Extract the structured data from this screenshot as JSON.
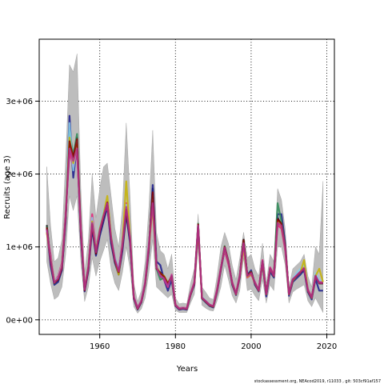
{
  "chart_data": {
    "type": "line",
    "title": "",
    "xlabel": "Years",
    "ylabel": "Recruits (age 3)",
    "xlim": [
      1944,
      2022
    ],
    "ylim": [
      -200000,
      3850000
    ],
    "x_ticks": [
      1960,
      1980,
      2000,
      2020
    ],
    "x_tick_labels": [
      "1960",
      "1980",
      "2000",
      "2020"
    ],
    "y_ticks": [
      0,
      1000000,
      2000000,
      3000000
    ],
    "y_tick_labels": [
      "0e+00",
      "1e+06",
      "2e+06",
      "3e+06"
    ],
    "grid": true,
    "confidence_band_color": "#bdbdbd",
    "series_colors": [
      "#000000",
      "#1a1a8c",
      "#e61e78",
      "#2e8b57",
      "#87ceeb",
      "#c8b400",
      "#8b0000",
      "#b03090"
    ],
    "x": [
      1946,
      1947,
      1948,
      1949,
      1950,
      1951,
      1952,
      1953,
      1954,
      1955,
      1956,
      1957,
      1958,
      1959,
      1960,
      1961,
      1962,
      1963,
      1964,
      1965,
      1966,
      1967,
      1968,
      1969,
      1970,
      1971,
      1972,
      1973,
      1974,
      1975,
      1976,
      1977,
      1978,
      1979,
      1980,
      1981,
      1982,
      1983,
      1984,
      1985,
      1986,
      1987,
      1988,
      1989,
      1990,
      1991,
      1992,
      1993,
      1994,
      1995,
      1996,
      1997,
      1998,
      1999,
      2000,
      2001,
      2002,
      2003,
      2004,
      2005,
      2006,
      2007,
      2008,
      2009,
      2010,
      2011,
      2012,
      2013,
      2014,
      2015,
      2016,
      2017,
      2018,
      2019
    ],
    "series": [
      {
        "values": [
          1300000,
          800000,
          500000,
          550000,
          700000,
          1400000,
          2550000,
          2200000,
          2500000,
          1200000,
          400000,
          700000,
          1300000,
          900000,
          1200000,
          1400000,
          1600000,
          1100000,
          800000,
          650000,
          1000000,
          1500000,
          1100000,
          300000,
          150000,
          250000,
          500000,
          1000000,
          1800000,
          700000,
          650000,
          600000,
          500000,
          600000,
          200000,
          150000,
          160000,
          150000,
          350000,
          500000,
          1300000,
          300000,
          250000,
          200000,
          180000,
          400000,
          700000,
          1000000,
          800000,
          500000,
          350000,
          600000,
          1100000,
          600000,
          650000,
          500000,
          400000,
          800000,
          350000,
          700000,
          600000,
          1400000,
          1300000,
          1000000,
          350000,
          550000,
          600000,
          650000,
          700000,
          400000,
          300000,
          600000,
          500000,
          500000
        ]
      },
      {
        "values": [
          1250000,
          750000,
          480000,
          520000,
          680000,
          1350000,
          2800000,
          1950000,
          2400000,
          1150000,
          390000,
          680000,
          1250000,
          880000,
          1150000,
          1350000,
          1550000,
          1050000,
          780000,
          620000,
          950000,
          1450000,
          1050000,
          290000,
          140000,
          240000,
          480000,
          950000,
          1850000,
          800000,
          750000,
          550000,
          400000,
          550000,
          190000,
          140000,
          150000,
          140000,
          340000,
          480000,
          1250000,
          290000,
          240000,
          190000,
          170000,
          380000,
          680000,
          960000,
          780000,
          480000,
          340000,
          580000,
          1050000,
          620000,
          680000,
          480000,
          390000,
          780000,
          320000,
          660000,
          580000,
          1450000,
          1450000,
          1050000,
          330000,
          520000,
          570000,
          620000,
          680000,
          380000,
          280000,
          560000,
          400000,
          400000
        ]
      },
      {
        "values": [
          1200000,
          900000,
          520000,
          600000,
          780000,
          1500000,
          2300000,
          2100000,
          2300000,
          1300000,
          450000,
          750000,
          1450000,
          1000000,
          1250000,
          1450000,
          1550000,
          1150000,
          850000,
          700000,
          1100000,
          1600000,
          1150000,
          320000,
          170000,
          270000,
          520000,
          1050000,
          1600000,
          750000,
          600000,
          550000,
          450000,
          620000,
          210000,
          160000,
          170000,
          160000,
          370000,
          520000,
          1280000,
          310000,
          260000,
          210000,
          190000,
          420000,
          720000,
          950000,
          760000,
          520000,
          360000,
          620000,
          1000000,
          580000,
          620000,
          520000,
          410000,
          820000,
          360000,
          720000,
          620000,
          1300000,
          1250000,
          950000,
          360000,
          560000,
          620000,
          660000,
          720000,
          420000,
          310000,
          580000,
          520000,
          520000
        ]
      },
      {
        "values": [
          1280000,
          820000,
          500000,
          560000,
          720000,
          1420000,
          2600000,
          2250000,
          2550000,
          1220000,
          410000,
          720000,
          1320000,
          920000,
          1220000,
          1420000,
          1620000,
          1120000,
          820000,
          660000,
          1020000,
          1520000,
          1120000,
          310000,
          155000,
          255000,
          505000,
          1020000,
          1700000,
          700000,
          550000,
          580000,
          480000,
          600000,
          200000,
          150000,
          160000,
          150000,
          355000,
          505000,
          1320000,
          305000,
          255000,
          205000,
          185000,
          405000,
          705000,
          1010000,
          805000,
          505000,
          355000,
          605000,
          1080000,
          610000,
          660000,
          505000,
          405000,
          805000,
          355000,
          705000,
          605000,
          1600000,
          1350000,
          1020000,
          355000,
          555000,
          605000,
          655000,
          705000,
          405000,
          305000,
          605000,
          505000,
          505000
        ]
      },
      {
        "values": [
          1220000,
          860000,
          530000,
          580000,
          760000,
          1480000,
          2700000,
          2050000,
          2450000,
          1280000,
          440000,
          760000,
          1400000,
          980000,
          1280000,
          1500000,
          1650000,
          1180000,
          860000,
          690000,
          1080000,
          1580000,
          1180000,
          320000,
          160000,
          265000,
          515000,
          1040000,
          1650000,
          740000,
          620000,
          580000,
          470000,
          610000,
          205000,
          155000,
          165000,
          155000,
          360000,
          510000,
          1300000,
          315000,
          260000,
          205000,
          185000,
          410000,
          710000,
          980000,
          790000,
          510000,
          350000,
          610000,
          1020000,
          600000,
          640000,
          510000,
          400000,
          800000,
          350000,
          700000,
          610000,
          1350000,
          1300000,
          980000,
          350000,
          560000,
          640000,
          700000,
          760000,
          410000,
          300000,
          640000,
          540000,
          540000
        ]
      },
      {
        "values": [
          1200000,
          840000,
          520000,
          560000,
          740000,
          1440000,
          2500000,
          2150000,
          2400000,
          1240000,
          420000,
          740000,
          1350000,
          950000,
          1250000,
          1450000,
          1700000,
          1150000,
          820000,
          620000,
          1050000,
          1900000,
          1150000,
          310000,
          150000,
          255000,
          495000,
          1000000,
          1550000,
          720000,
          640000,
          600000,
          500000,
          600000,
          200000,
          150000,
          160000,
          150000,
          350000,
          500000,
          1250000,
          300000,
          250000,
          200000,
          180000,
          400000,
          700000,
          990000,
          790000,
          500000,
          350000,
          600000,
          1000000,
          590000,
          630000,
          500000,
          400000,
          790000,
          350000,
          700000,
          600000,
          1350000,
          1280000,
          990000,
          350000,
          540000,
          600000,
          650000,
          820000,
          400000,
          300000,
          600000,
          700000,
          520000
        ]
      },
      {
        "values": [
          1270000,
          810000,
          505000,
          555000,
          710000,
          1410000,
          2450000,
          2230000,
          2480000,
          1210000,
          405000,
          710000,
          1310000,
          910000,
          1210000,
          1410000,
          1610000,
          1110000,
          810000,
          655000,
          1010000,
          1510000,
          1110000,
          305000,
          152000,
          252000,
          502000,
          1010000,
          1750000,
          705000,
          640000,
          590000,
          495000,
          600000,
          200000,
          150000,
          160000,
          150000,
          352000,
          502000,
          1310000,
          302000,
          252000,
          202000,
          182000,
          402000,
          702000,
          1000000,
          800000,
          502000,
          352000,
          602000,
          1090000,
          605000,
          655000,
          502000,
          402000,
          802000,
          352000,
          702000,
          602000,
          1380000,
          1320000,
          1010000,
          352000,
          552000,
          602000,
          652000,
          702000,
          402000,
          302000,
          602000,
          502000,
          502000
        ]
      },
      {
        "values": [
          1240000,
          830000,
          510000,
          570000,
          730000,
          1430000,
          2350000,
          2180000,
          2350000,
          1230000,
          415000,
          730000,
          1330000,
          930000,
          1230000,
          1430000,
          1600000,
          1130000,
          830000,
          665000,
          1030000,
          1550000,
          1130000,
          312000,
          156000,
          258000,
          508000,
          1030000,
          1600000,
          720000,
          600000,
          570000,
          470000,
          610000,
          202000,
          152000,
          162000,
          152000,
          356000,
          506000,
          1290000,
          306000,
          256000,
          206000,
          186000,
          406000,
          706000,
          990000,
          790000,
          506000,
          356000,
          606000,
          1050000,
          600000,
          640000,
          506000,
          406000,
          806000,
          356000,
          706000,
          606000,
          1330000,
          1290000,
          990000,
          356000,
          556000,
          606000,
          656000,
          706000,
          406000,
          306000,
          606000,
          506000,
          506000
        ]
      }
    ],
    "band_upper": [
      2100000,
      1300000,
      800000,
      850000,
      1100000,
      2200000,
      3500000,
      3400000,
      3650000,
      1800000,
      650000,
      1100000,
      2000000,
      1400000,
      1800000,
      2100000,
      2150000,
      1700000,
      1250000,
      1000000,
      1550000,
      2700000,
      1700000,
      500000,
      250000,
      400000,
      800000,
      1550000,
      2600000,
      1200000,
      950000,
      900000,
      700000,
      900000,
      300000,
      220000,
      230000,
      220000,
      500000,
      700000,
      1450000,
      450000,
      380000,
      300000,
      280000,
      600000,
      1000000,
      1200000,
      1050000,
      750000,
      550000,
      850000,
      1200000,
      850000,
      900000,
      700000,
      600000,
      1050000,
      500000,
      900000,
      800000,
      1800000,
      1650000,
      1250000,
      450000,
      700000,
      750000,
      800000,
      900000,
      600000,
      450000,
      1000000,
      900000,
      1900000
    ],
    "band_lower": [
      800000,
      500000,
      280000,
      320000,
      450000,
      900000,
      1700000,
      1500000,
      1700000,
      800000,
      250000,
      450000,
      850000,
      600000,
      800000,
      950000,
      1100000,
      700000,
      500000,
      400000,
      650000,
      1000000,
      700000,
      180000,
      90000,
      150000,
      300000,
      650000,
      1100000,
      450000,
      400000,
      350000,
      300000,
      350000,
      130000,
      100000,
      100000,
      100000,
      230000,
      350000,
      1000000,
      200000,
      160000,
      130000,
      120000,
      260000,
      450000,
      750000,
      550000,
      330000,
      230000,
      400000,
      850000,
      400000,
      420000,
      330000,
      260000,
      550000,
      230000,
      480000,
      400000,
      1000000,
      1000000,
      750000,
      230000,
      380000,
      420000,
      450000,
      480000,
      260000,
      180000,
      300000,
      200000,
      100000
    ]
  },
  "footer": {
    "note": "stockassessment.org, NEAcod2019, r11033 , git: 503cf91af157"
  }
}
